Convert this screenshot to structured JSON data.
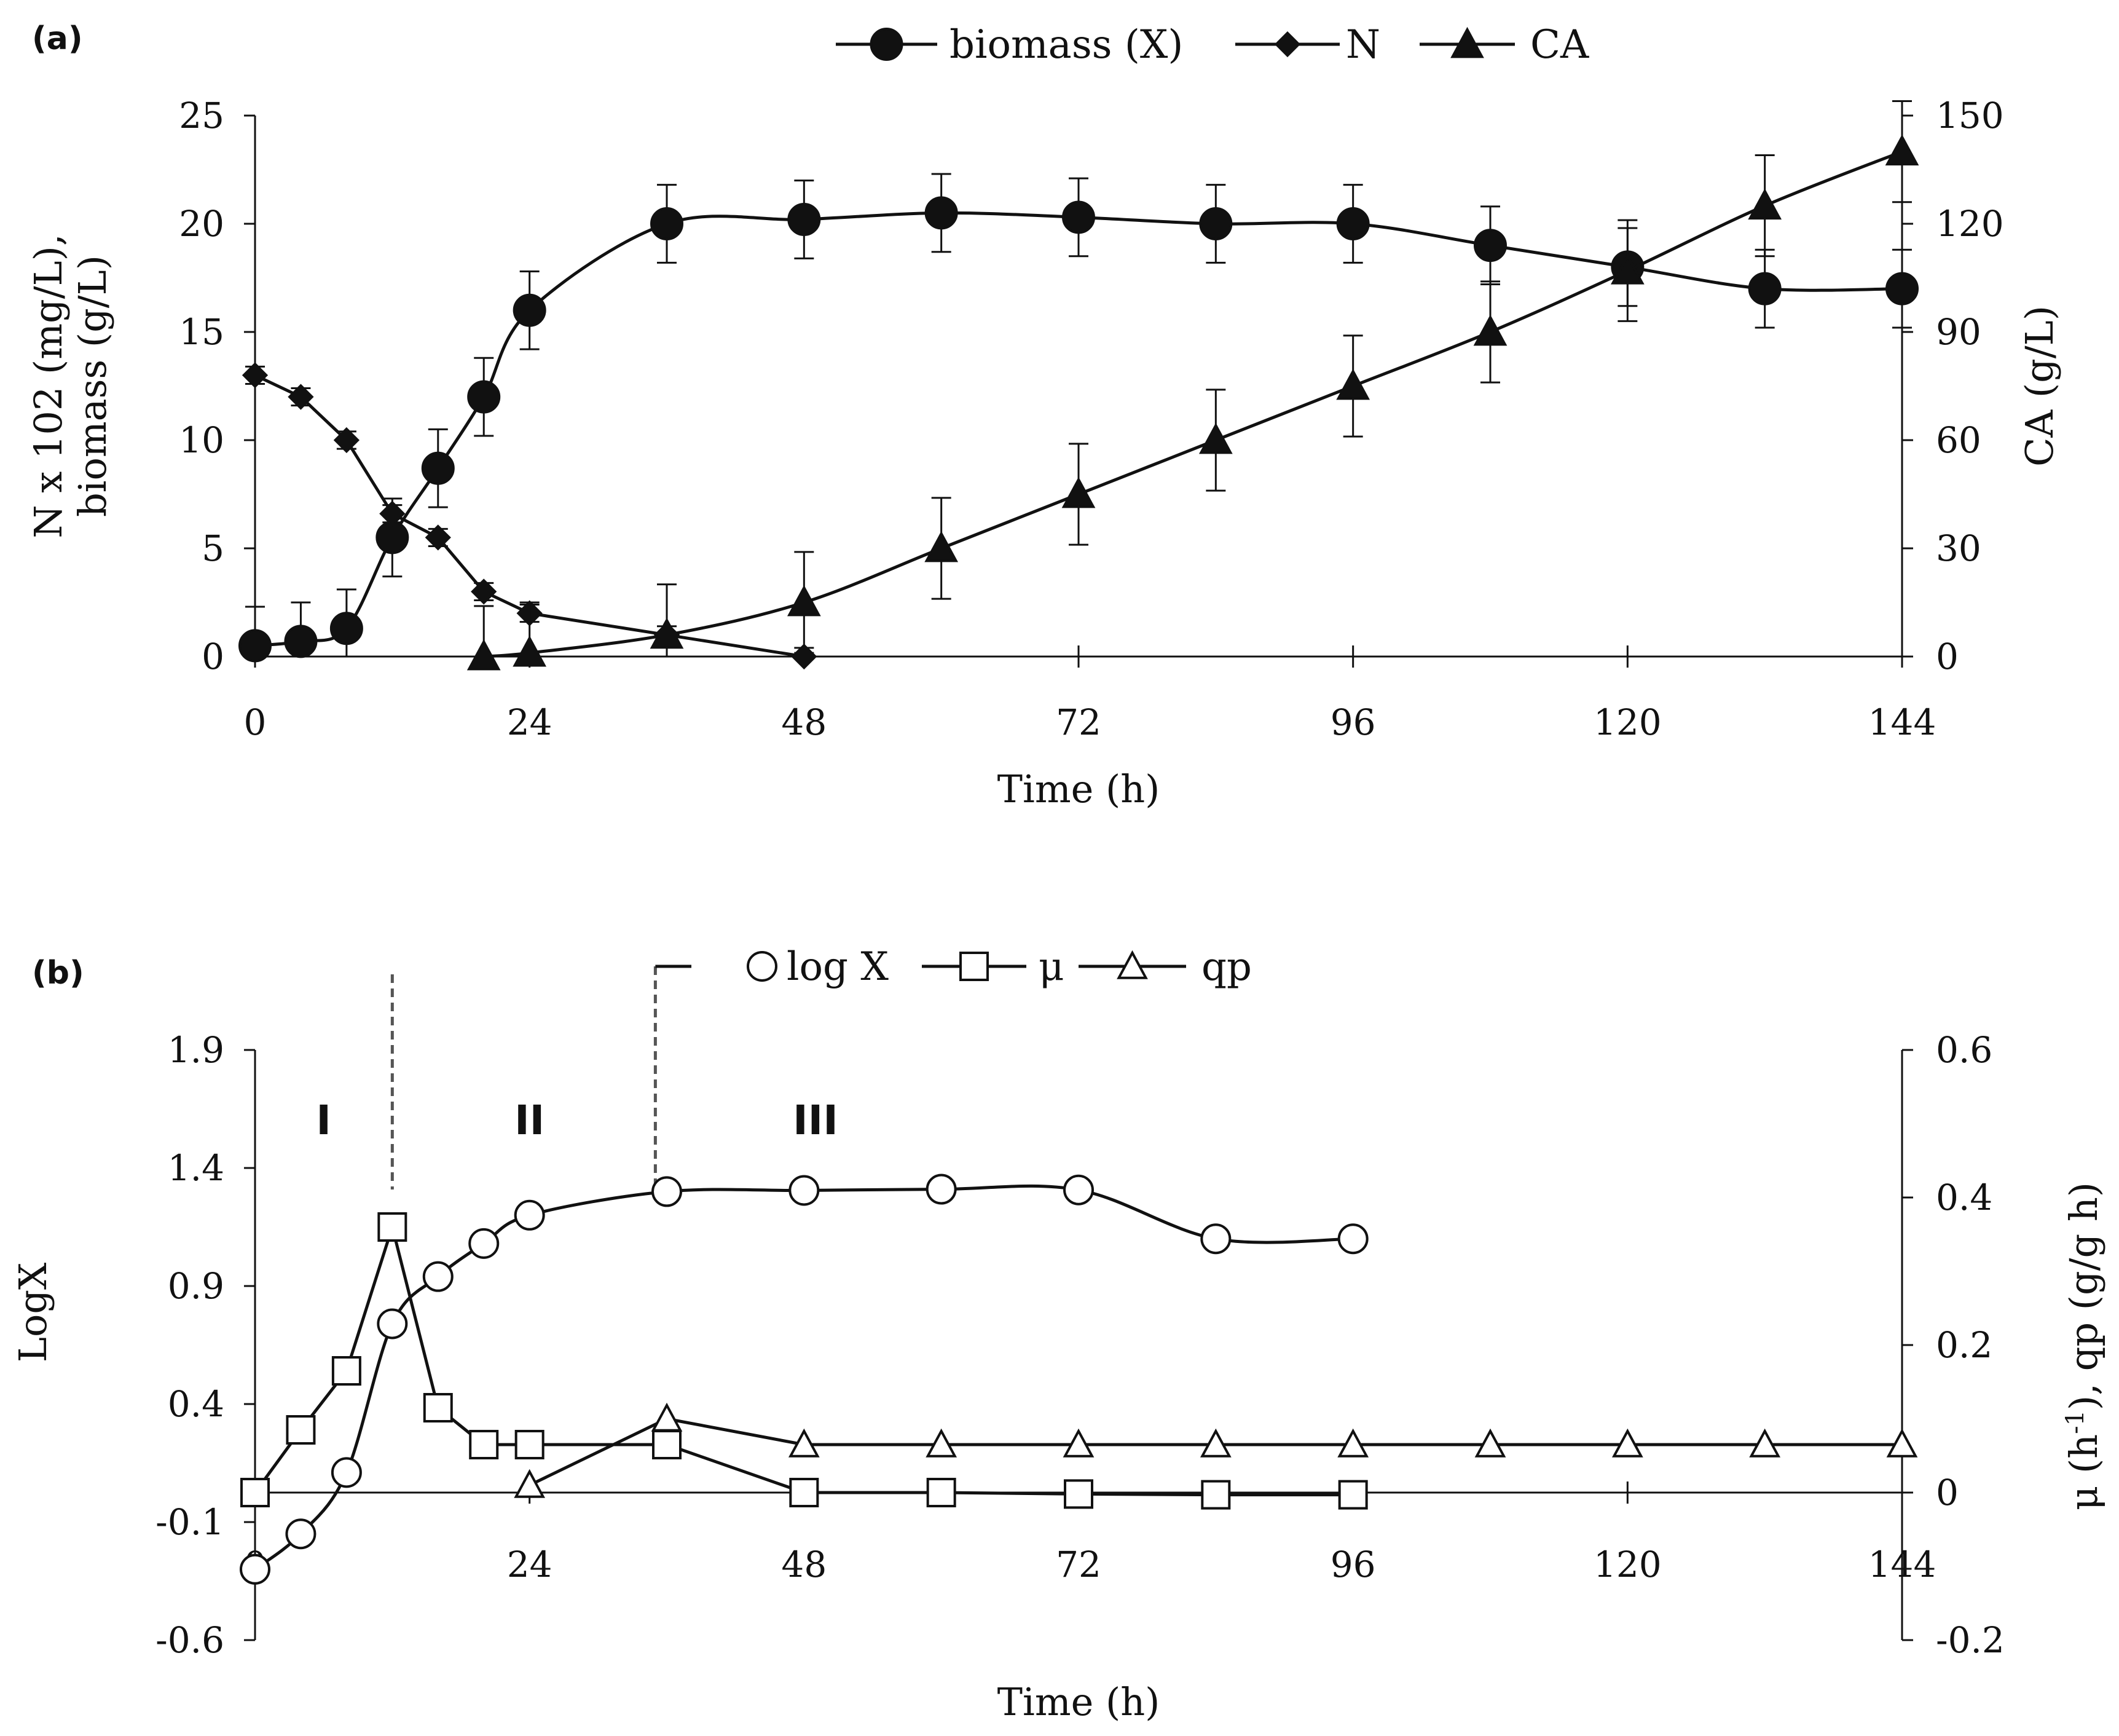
{
  "chart_data": [
    {
      "panel": "(a)",
      "type": "line",
      "xlabel": "Time (h)",
      "ylabel_left_line1": "N x 102 (mg/L),",
      "ylabel_left_line2": "biomass (g/L)",
      "ylabel_right": "CA (g/L)",
      "xlim": [
        0,
        144
      ],
      "ylim_left": [
        0,
        25
      ],
      "ylim_right": [
        0,
        150
      ],
      "x_ticks": [
        "0",
        "24",
        "48",
        "72",
        "96",
        "120",
        "144"
      ],
      "y_ticks_left": [
        "0",
        "5",
        "10",
        "15",
        "20",
        "25"
      ],
      "y_ticks_right": [
        "0",
        "30",
        "60",
        "90",
        "120",
        "150"
      ],
      "legend_position": "top",
      "series": [
        {
          "name": "biomass (X)",
          "marker": "filled-circle",
          "axis": "left",
          "x": [
            0,
            4,
            8,
            12,
            16,
            20,
            24,
            36,
            48,
            60,
            72,
            84,
            96,
            108,
            120,
            132,
            144
          ],
          "values": [
            0.5,
            0.7,
            1.3,
            5.5,
            8.7,
            12,
            16,
            20,
            20.2,
            20.5,
            20.3,
            20,
            20,
            19,
            18,
            17,
            17
          ],
          "errors": [
            1.8,
            1.8,
            1.8,
            1.8,
            1.8,
            1.8,
            1.8,
            1.8,
            1.8,
            1.8,
            1.8,
            1.8,
            1.8,
            1.8,
            1.8,
            1.8,
            1.8
          ]
        },
        {
          "name": "N",
          "marker": "filled-diamond",
          "axis": "left",
          "x": [
            0,
            4,
            8,
            12,
            16,
            20,
            24,
            36,
            48
          ],
          "values": [
            13,
            12,
            10,
            6.6,
            5.5,
            3,
            2,
            1,
            0
          ],
          "errors": [
            0.4,
            0.4,
            0.4,
            0.4,
            0.4,
            0.4,
            0.4,
            0.4,
            0.4
          ]
        },
        {
          "name": "CA",
          "marker": "filled-triangle",
          "axis": "right",
          "x": [
            20,
            24,
            36,
            48,
            60,
            72,
            84,
            96,
            108,
            120,
            132,
            144
          ],
          "values": [
            0,
            1,
            6,
            15,
            30,
            45,
            60,
            75,
            90,
            107,
            125,
            140
          ],
          "errors": [
            14,
            14,
            14,
            14,
            14,
            14,
            14,
            14,
            14,
            14,
            14,
            14
          ]
        }
      ]
    },
    {
      "panel": "(b)",
      "type": "line",
      "xlabel": "Time (h)",
      "ylabel_left": "LogX",
      "ylabel_right_mu": "μ (h",
      "ylabel_right_sup": "-1",
      "ylabel_right_rest": "), qp (g/g h)",
      "xlim": [
        0,
        144
      ],
      "ylim_left": [
        -0.6,
        1.9
      ],
      "ylim_right": [
        -0.2,
        0.6
      ],
      "x_ticks": [
        "0",
        "24",
        "48",
        "72",
        "96",
        "120",
        "144"
      ],
      "y_ticks_left": [
        "-0.6",
        "-0.1",
        "0.4",
        "0.9",
        "1.4",
        "1.9"
      ],
      "y_ticks_right": [
        "-0.2",
        "0",
        "0.2",
        "0.4",
        "0.6"
      ],
      "legend_position": "top",
      "phase_labels": [
        {
          "label": "I",
          "x": 6
        },
        {
          "label": "II",
          "x": 24
        },
        {
          "label": "III",
          "x": 49
        }
      ],
      "phase_boundaries_x": [
        12,
        35
      ],
      "series": [
        {
          "name": "log X",
          "marker": "open-circle",
          "axis": "left",
          "x": [
            0,
            4,
            8,
            12,
            16,
            20,
            24,
            36,
            48,
            60,
            72,
            84,
            96
          ],
          "values": [
            -0.3,
            -0.15,
            0.11,
            0.74,
            0.94,
            1.08,
            1.2,
            1.3,
            1.305,
            1.31,
            1.307,
            1.1,
            1.1
          ]
        },
        {
          "name": "μ",
          "marker": "open-square",
          "axis": "right",
          "x": [
            0,
            4,
            8,
            12,
            16,
            20,
            24,
            36,
            48,
            60,
            72,
            84,
            96
          ],
          "values": [
            0.0,
            0.085,
            0.165,
            0.36,
            0.115,
            0.065,
            0.065,
            0.065,
            0.0,
            0.0,
            -0.002,
            -0.003,
            -0.003
          ]
        },
        {
          "name": "qp",
          "marker": "open-triangle",
          "axis": "right",
          "x": [
            24,
            36,
            48,
            60,
            72,
            84,
            96,
            108,
            120,
            132,
            144
          ],
          "values": [
            0.01,
            0.1,
            0.065,
            0.065,
            0.065,
            0.065,
            0.065,
            0.065,
            0.065,
            0.065,
            0.065
          ]
        }
      ]
    }
  ]
}
